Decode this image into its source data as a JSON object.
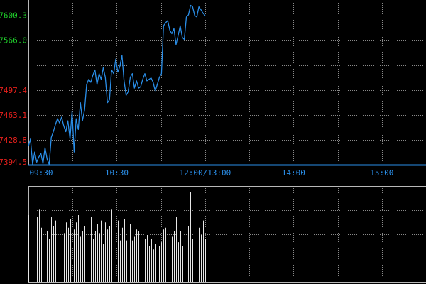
{
  "chart_data": {
    "type": "line",
    "price": {
      "y_ticks": [
        {
          "value": 7600.3,
          "label": "7600.3",
          "color": "#1fcc2a"
        },
        {
          "value": 7566.0,
          "label": "7566.0",
          "color": "#1fcc2a"
        },
        {
          "value": 7497.4,
          "label": "7497.4",
          "color": "#e8201c"
        },
        {
          "value": 7463.1,
          "label": "7463.1",
          "color": "#e8201c"
        },
        {
          "value": 7428.8,
          "label": "7428.8",
          "color": "#e8201c"
        },
        {
          "value": 7394.5,
          "label": "7394.5",
          "color": "#e8201c"
        }
      ],
      "ylim": [
        7394.5,
        7617.45
      ],
      "series": [
        {
          "color": "#2a8ee8",
          "values": [
            7420,
            7430,
            7395,
            7412,
            7398,
            7405,
            7410,
            7396,
            7418,
            7402,
            7395,
            7432,
            7440,
            7450,
            7458,
            7452,
            7460,
            7448,
            7440,
            7455,
            7430,
            7468,
            7412,
            7458,
            7443,
            7480,
            7455,
            7470,
            7505,
            7512,
            7508,
            7518,
            7525,
            7505,
            7520,
            7512,
            7528,
            7515,
            7480,
            7484,
            7525,
            7520,
            7540,
            7522,
            7530,
            7545,
            7510,
            7490,
            7495,
            7515,
            7520,
            7500,
            7510,
            7500,
            7502,
            7512,
            7520,
            7510,
            7512,
            7514,
            7508,
            7496,
            7505,
            7515,
            7520,
            7586,
            7590,
            7593,
            7580,
            7575,
            7582,
            7560,
            7572,
            7586,
            7570,
            7567,
            7598,
            7601,
            7614,
            7612,
            7600,
            7598,
            7612,
            7608,
            7603,
            7600
          ]
        }
      ]
    },
    "time_ticks": [
      {
        "label": "09:30",
        "minute": 0
      },
      {
        "label": "10:30",
        "minute": 60
      },
      {
        "label": "12:00/13:00",
        "minute": 120
      },
      {
        "label": "14:00",
        "minute": 180
      },
      {
        "label": "15:00",
        "minute": 240
      }
    ],
    "x_range_minutes": [
      0,
      270
    ],
    "grid": true,
    "volume": {
      "color": "#e6e6e6",
      "values": [
        74,
        80,
        70,
        78,
        72,
        80,
        60,
        66,
        90,
        56,
        48,
        72,
        62,
        68,
        84,
        100,
        74,
        54,
        66,
        60,
        70,
        90,
        58,
        66,
        74,
        50,
        56,
        62,
        60,
        100,
        72,
        48,
        56,
        64,
        54,
        68,
        42,
        66,
        58,
        62,
        80,
        60,
        44,
        68,
        46,
        60,
        70,
        46,
        50,
        64,
        46,
        50,
        58,
        56,
        42,
        68,
        48,
        52,
        40,
        48,
        36,
        42,
        50,
        40,
        44,
        58,
        60,
        100,
        52,
        50,
        56,
        72,
        44,
        56,
        40,
        58,
        54,
        62,
        100,
        48,
        66,
        56,
        60,
        52,
        68,
        48
      ]
    }
  }
}
